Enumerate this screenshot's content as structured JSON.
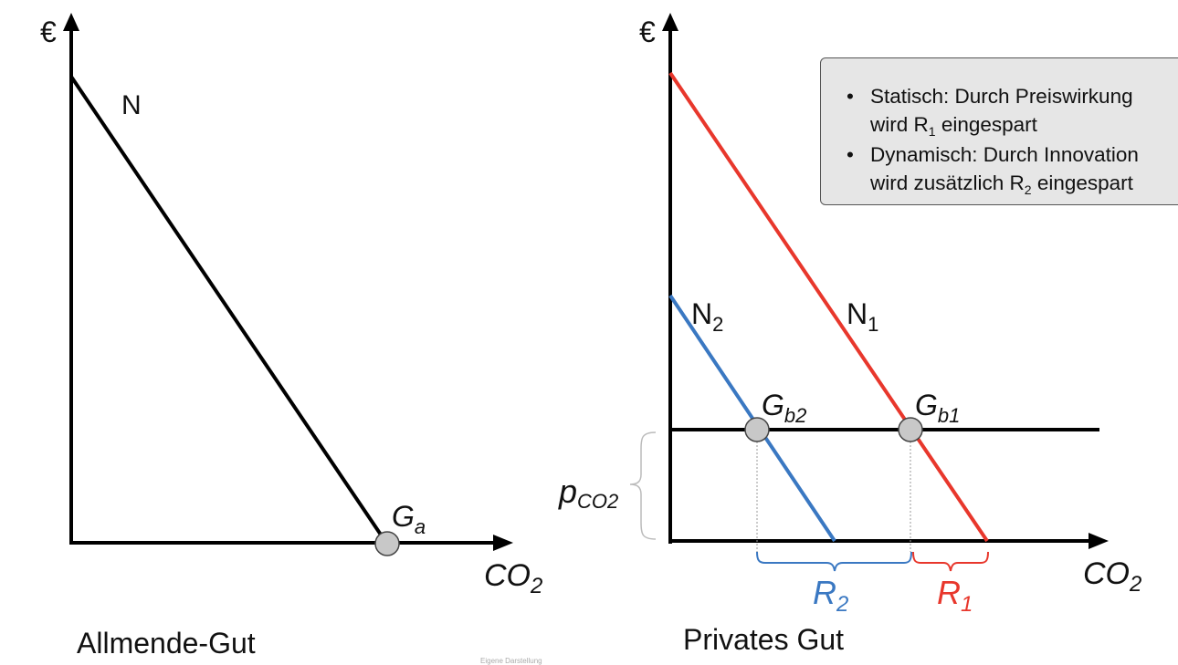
{
  "left_panel": {
    "axis_y_label": "€",
    "axis_x_label": "CO",
    "axis_x_sub": "2",
    "curve_label": "N",
    "point_label": "G",
    "point_sub": "a",
    "caption": "Allmende-Gut"
  },
  "right_panel": {
    "axis_y_label": "€",
    "axis_x_label": "CO",
    "axis_x_sub": "2",
    "curve1_label": "N",
    "curve1_sub": "1",
    "curve2_label": "N",
    "curve2_sub": "2",
    "point1_label": "G",
    "point1_sub": "b1",
    "point2_label": "G",
    "point2_sub": "b2",
    "price_label": "p",
    "price_sub": "CO2",
    "r1_label": "R",
    "r1_sub": "1",
    "r2_label": "R",
    "r2_sub": "2",
    "caption": "Privates Gut"
  },
  "info_box": {
    "bullet1_line1": "Statisch: Durch Preiswirkung",
    "bullet1_line2_pre": "wird R",
    "bullet1_line2_sub": "1",
    "bullet1_line2_post": " eingespart",
    "bullet2_line1": "Dynamisch: Durch Innovation",
    "bullet2_line2_pre": "wird zusätzlich R",
    "bullet2_line2_sub": "2",
    "bullet2_line2_post": " eingespart"
  },
  "footer_note": "Eigene Darstellung",
  "colors": {
    "axis": "#000000",
    "curve_n1": "#e8372c",
    "curve_n2": "#3a78c2",
    "point_fill": "#c8c8c8",
    "bracket": "#bbbbbb"
  }
}
